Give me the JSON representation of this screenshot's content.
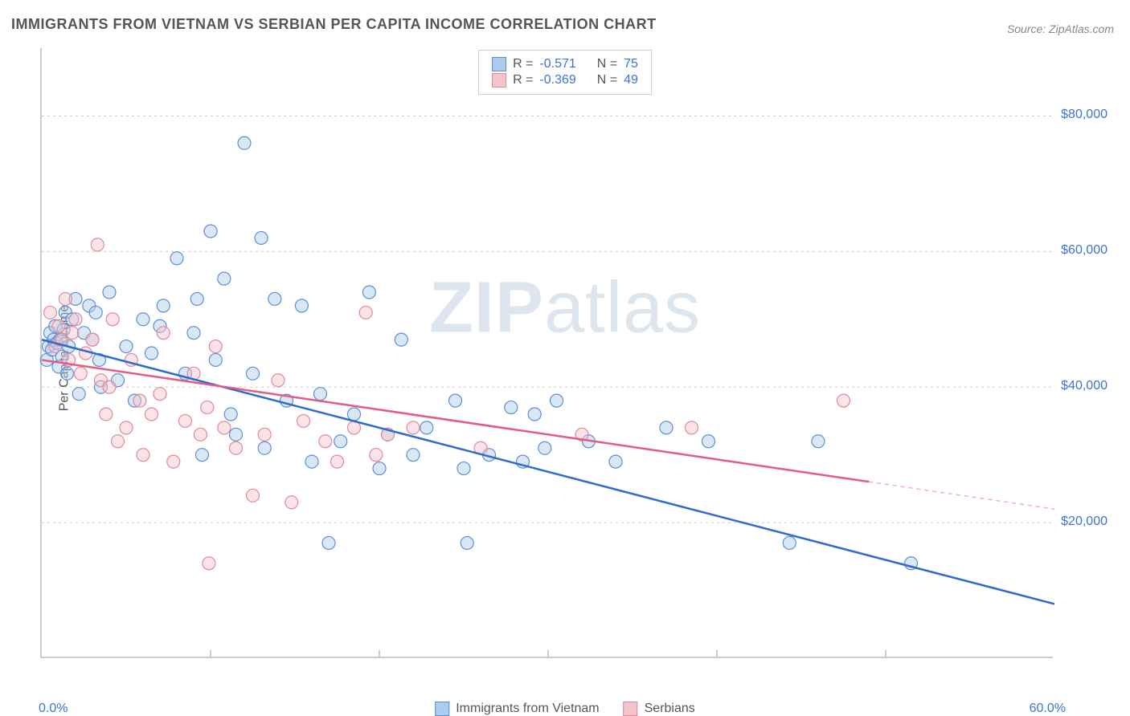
{
  "title": "IMMIGRANTS FROM VIETNAM VS SERBIAN PER CAPITA INCOME CORRELATION CHART",
  "source": "Source: ZipAtlas.com",
  "watermark_a": "ZIP",
  "watermark_b": "atlas",
  "chart": {
    "type": "scatter",
    "y_axis_label": "Per Capita Income",
    "xlim": [
      0,
      60
    ],
    "ylim": [
      0,
      90000
    ],
    "x_min_label": "0.0%",
    "x_max_label": "60.0%",
    "y_ticks": [
      20000,
      40000,
      60000,
      80000
    ],
    "y_tick_labels": [
      "$20,000",
      "$40,000",
      "$60,000",
      "$80,000"
    ],
    "x_ticks": [
      10,
      20,
      30,
      40,
      50
    ],
    "background_color": "#ffffff",
    "grid_color": "#cccccc",
    "marker_radius": 8,
    "marker_stroke_width": 1.2,
    "marker_fill_opacity": 0.45,
    "line_width": 2.5,
    "series": [
      {
        "name": "Immigrants from Vietnam",
        "r": "-0.571",
        "n": "75",
        "marker_fill": "#AECBEB",
        "marker_stroke": "#5B8FD6",
        "line_color": "#2E6BCF",
        "trend": {
          "x1": 0,
          "y1": 47000,
          "x2": 60,
          "y2": 8000,
          "dashed_after_x": 60
        },
        "points": [
          [
            0.3,
            44000
          ],
          [
            0.4,
            46000
          ],
          [
            0.5,
            48000
          ],
          [
            0.6,
            45500
          ],
          [
            0.7,
            47000
          ],
          [
            0.8,
            49000
          ],
          [
            0.9,
            46500
          ],
          [
            1.0,
            43000
          ],
          [
            1.1,
            47000
          ],
          [
            1.2,
            44500
          ],
          [
            1.3,
            48500
          ],
          [
            1.4,
            51000
          ],
          [
            1.5,
            42000
          ],
          [
            1.6,
            46000
          ],
          [
            1.8,
            50000
          ],
          [
            2.0,
            53000
          ],
          [
            2.2,
            39000
          ],
          [
            2.5,
            48000
          ],
          [
            2.8,
            52000
          ],
          [
            3.0,
            47000
          ],
          [
            3.2,
            51000
          ],
          [
            3.4,
            44000
          ],
          [
            3.5,
            40000
          ],
          [
            4.0,
            54000
          ],
          [
            4.5,
            41000
          ],
          [
            5.0,
            46000
          ],
          [
            5.5,
            38000
          ],
          [
            6.0,
            50000
          ],
          [
            6.5,
            45000
          ],
          [
            7.0,
            49000
          ],
          [
            7.2,
            52000
          ],
          [
            8.0,
            59000
          ],
          [
            8.5,
            42000
          ],
          [
            9.0,
            48000
          ],
          [
            9.2,
            53000
          ],
          [
            9.5,
            30000
          ],
          [
            10.0,
            63000
          ],
          [
            10.3,
            44000
          ],
          [
            10.8,
            56000
          ],
          [
            11.2,
            36000
          ],
          [
            11.5,
            33000
          ],
          [
            12.0,
            76000
          ],
          [
            12.5,
            42000
          ],
          [
            13.0,
            62000
          ],
          [
            13.2,
            31000
          ],
          [
            13.8,
            53000
          ],
          [
            14.5,
            38000
          ],
          [
            15.4,
            52000
          ],
          [
            16.0,
            29000
          ],
          [
            16.5,
            39000
          ],
          [
            17.0,
            17000
          ],
          [
            17.7,
            32000
          ],
          [
            18.5,
            36000
          ],
          [
            19.4,
            54000
          ],
          [
            20.0,
            28000
          ],
          [
            20.5,
            33000
          ],
          [
            21.3,
            47000
          ],
          [
            22.0,
            30000
          ],
          [
            22.8,
            34000
          ],
          [
            24.5,
            38000
          ],
          [
            25.0,
            28000
          ],
          [
            25.2,
            17000
          ],
          [
            26.5,
            30000
          ],
          [
            27.8,
            37000
          ],
          [
            28.5,
            29000
          ],
          [
            29.2,
            36000
          ],
          [
            29.8,
            31000
          ],
          [
            30.5,
            38000
          ],
          [
            32.4,
            32000
          ],
          [
            34.0,
            29000
          ],
          [
            37.0,
            34000
          ],
          [
            39.5,
            32000
          ],
          [
            44.3,
            17000
          ],
          [
            46.0,
            32000
          ],
          [
            51.5,
            14000
          ]
        ]
      },
      {
        "name": "Serbians",
        "r": "-0.369",
        "n": "49",
        "marker_fill": "#F4C3CC",
        "marker_stroke": "#E3879B",
        "line_color": "#E55B82",
        "trend": {
          "x1": 0,
          "y1": 44000,
          "x2": 60,
          "y2": 22000,
          "dashed_after_x": 49
        },
        "points": [
          [
            0.5,
            51000
          ],
          [
            0.8,
            46000
          ],
          [
            1.0,
            49000
          ],
          [
            1.2,
            47000
          ],
          [
            1.4,
            53000
          ],
          [
            1.6,
            44000
          ],
          [
            1.8,
            48000
          ],
          [
            2.0,
            50000
          ],
          [
            2.3,
            42000
          ],
          [
            2.6,
            45000
          ],
          [
            3.0,
            47000
          ],
          [
            3.3,
            61000
          ],
          [
            3.5,
            41000
          ],
          [
            3.8,
            36000
          ],
          [
            4.0,
            40000
          ],
          [
            4.2,
            50000
          ],
          [
            4.5,
            32000
          ],
          [
            5.0,
            34000
          ],
          [
            5.3,
            44000
          ],
          [
            5.8,
            38000
          ],
          [
            6.0,
            30000
          ],
          [
            6.5,
            36000
          ],
          [
            7.0,
            39000
          ],
          [
            7.2,
            48000
          ],
          [
            7.8,
            29000
          ],
          [
            8.5,
            35000
          ],
          [
            9.0,
            42000
          ],
          [
            9.4,
            33000
          ],
          [
            9.8,
            37000
          ],
          [
            9.9,
            14000
          ],
          [
            10.3,
            46000
          ],
          [
            10.8,
            34000
          ],
          [
            11.5,
            31000
          ],
          [
            12.5,
            24000
          ],
          [
            13.2,
            33000
          ],
          [
            14.0,
            41000
          ],
          [
            14.8,
            23000
          ],
          [
            15.5,
            35000
          ],
          [
            16.8,
            32000
          ],
          [
            17.5,
            29000
          ],
          [
            18.5,
            34000
          ],
          [
            19.2,
            51000
          ],
          [
            19.8,
            30000
          ],
          [
            20.5,
            33000
          ],
          [
            22.0,
            34000
          ],
          [
            26.0,
            31000
          ],
          [
            32.0,
            33000
          ],
          [
            38.5,
            34000
          ],
          [
            47.5,
            38000
          ]
        ]
      }
    ]
  },
  "legend_top": {
    "r_label": "R  =",
    "n_label": "N  ="
  },
  "legend_bottom": {
    "items": [
      "Immigrants from Vietnam",
      "Serbians"
    ]
  }
}
